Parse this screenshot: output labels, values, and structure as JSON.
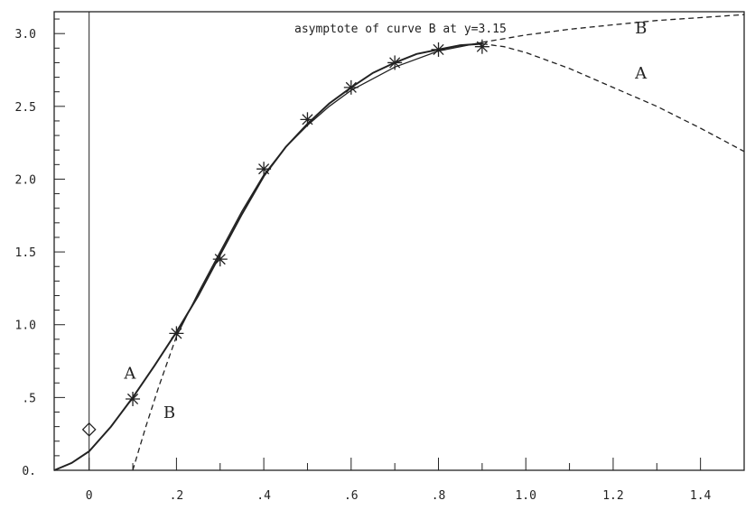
{
  "chart_data": {
    "type": "line",
    "title": "",
    "xlabel": "",
    "ylabel": "",
    "xlim": [
      -0.08,
      1.5
    ],
    "ylim": [
      0,
      3.15
    ],
    "grid": false,
    "x_ticks": [
      0,
      0.2,
      0.4,
      0.6,
      0.8,
      1.0,
      1.2,
      1.4
    ],
    "x_tick_labels": [
      "0",
      ".2",
      ".4",
      ".6",
      ".8",
      "1.0",
      "1.2",
      "1.4"
    ],
    "y_ticks": [
      0,
      0.5,
      1.0,
      1.5,
      2.0,
      2.5,
      3.0
    ],
    "y_tick_labels": [
      "0.",
      ".5",
      "1.0",
      "1.5",
      "2.0",
      "2.5",
      "3.0"
    ],
    "annotation": "asymptote of curve B at y=3.15",
    "series": [
      {
        "name": "A",
        "style": "solid-then-dashed",
        "x": [
          -0.08,
          -0.04,
          0.0,
          0.05,
          0.1,
          0.15,
          0.2,
          0.25,
          0.3,
          0.35,
          0.4,
          0.45,
          0.5,
          0.55,
          0.6,
          0.65,
          0.7,
          0.75,
          0.8,
          0.85,
          0.9,
          0.95,
          1.0,
          1.1,
          1.2,
          1.3,
          1.4,
          1.5
        ],
        "y": [
          0.0,
          0.05,
          0.13,
          0.3,
          0.5,
          0.72,
          0.95,
          1.2,
          1.48,
          1.76,
          2.02,
          2.22,
          2.38,
          2.52,
          2.63,
          2.73,
          2.8,
          2.86,
          2.89,
          2.92,
          2.93,
          2.91,
          2.87,
          2.76,
          2.63,
          2.5,
          2.35,
          2.19
        ],
        "solid_until_x": 0.9
      },
      {
        "name": "B",
        "style": "solid-then-dashed",
        "x": [
          0.1,
          0.13,
          0.16,
          0.2,
          0.25,
          0.3,
          0.35,
          0.4,
          0.45,
          0.5,
          0.55,
          0.6,
          0.7,
          0.8,
          0.9,
          1.0,
          1.1,
          1.2,
          1.3,
          1.4,
          1.5
        ],
        "y": [
          0.0,
          0.3,
          0.58,
          0.92,
          1.22,
          1.5,
          1.78,
          2.03,
          2.22,
          2.37,
          2.5,
          2.61,
          2.77,
          2.88,
          2.94,
          2.99,
          3.03,
          3.06,
          3.09,
          3.11,
          3.13
        ],
        "solid_from_x": 0.2,
        "solid_until_x": 0.9
      }
    ],
    "markers": {
      "shape": "asterisk",
      "x": [
        0.1,
        0.2,
        0.3,
        0.4,
        0.5,
        0.6,
        0.7,
        0.8,
        0.9
      ],
      "y": [
        0.49,
        0.94,
        1.45,
        2.07,
        2.41,
        2.63,
        2.8,
        2.89,
        2.91
      ]
    },
    "diamond": {
      "x": 0.0,
      "y": 0.28
    },
    "curve_labels": [
      {
        "text": "A",
        "x": 0.08,
        "y": 0.63
      },
      {
        "text": "B",
        "x": 0.17,
        "y": 0.36
      },
      {
        "text": "B",
        "x": 1.25,
        "y": 3.0
      },
      {
        "text": "A",
        "x": 1.25,
        "y": 2.69
      }
    ]
  }
}
